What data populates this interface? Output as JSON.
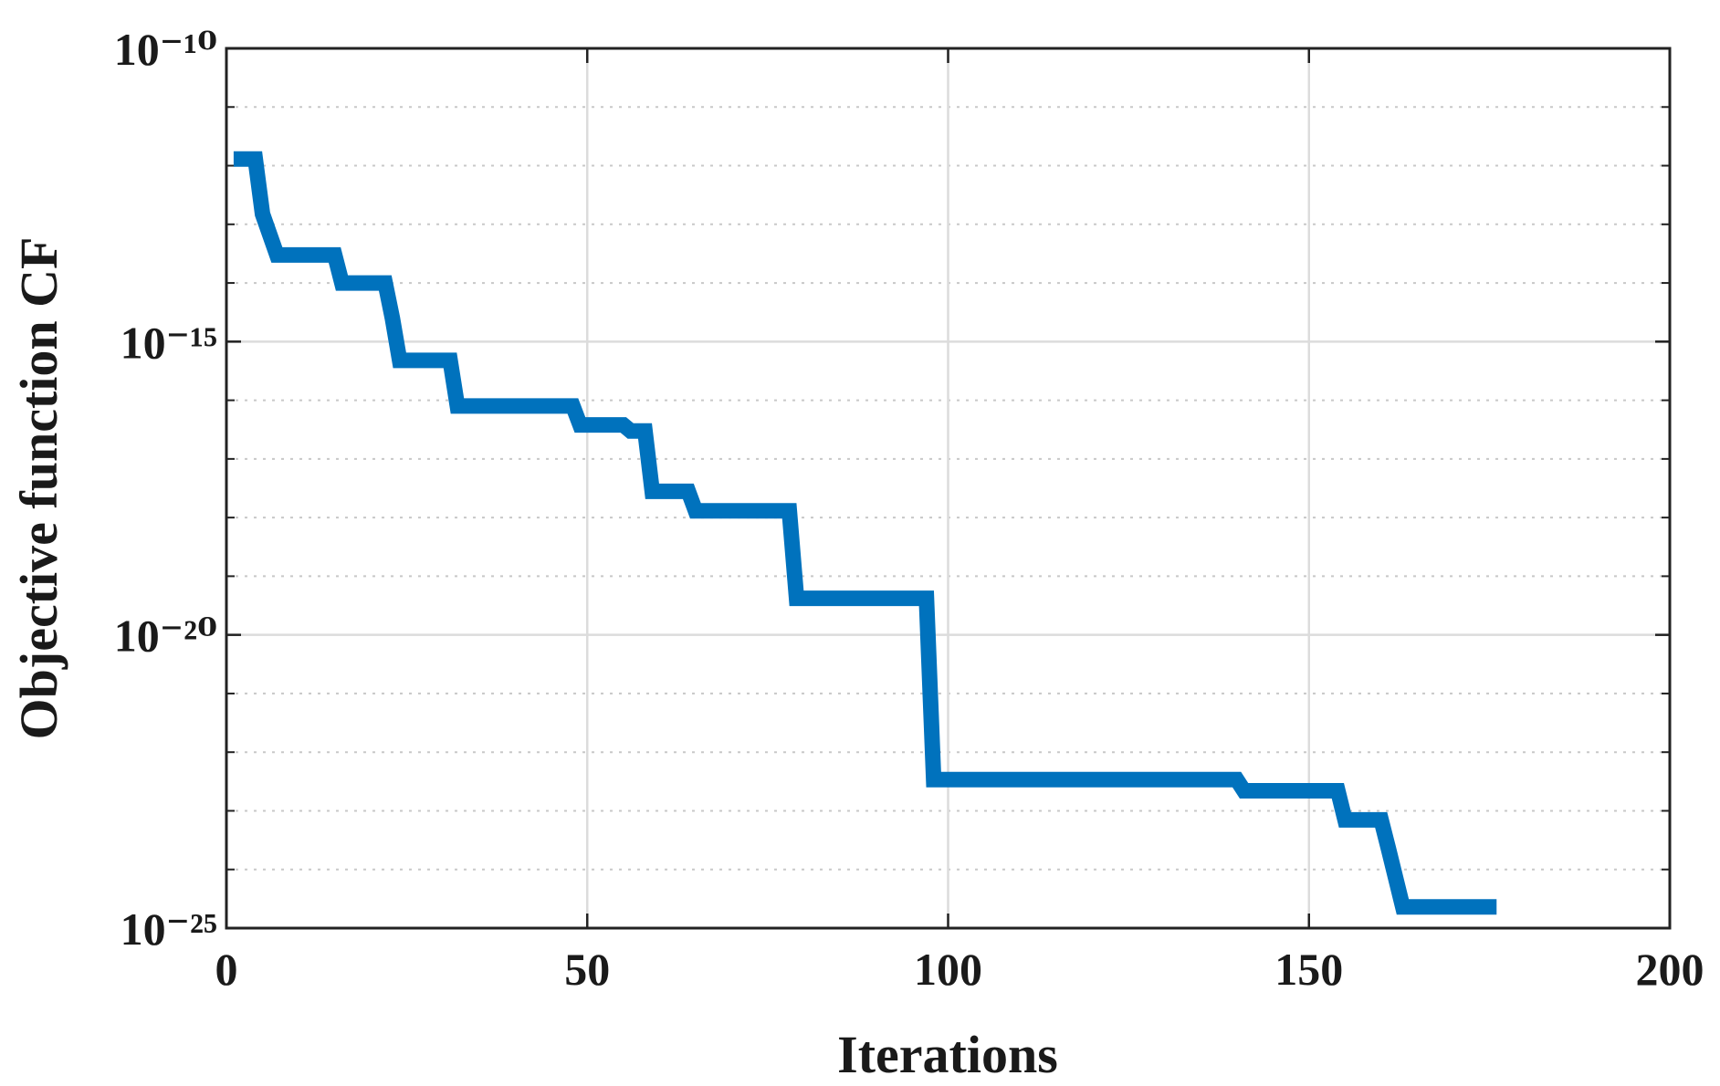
{
  "chart_data": {
    "type": "line",
    "xlabel": "Iterations",
    "ylabel": "Objective function CF",
    "x": [
      1,
      4,
      5,
      7,
      15,
      16,
      22,
      23,
      24,
      31,
      32,
      48,
      49,
      55,
      56,
      58,
      59,
      64,
      65,
      78,
      79,
      97,
      98,
      140,
      141,
      154,
      155,
      160,
      161,
      163,
      176
    ],
    "series": [
      {
        "color": "#0072bd",
        "values": [
          1.3e-12,
          1.3e-12,
          1.5e-13,
          3e-14,
          3e-14,
          1e-14,
          1e-14,
          2.5e-15,
          4.8e-16,
          4.8e-16,
          8e-17,
          8e-17,
          3.8e-17,
          3.8e-17,
          3e-17,
          3e-17,
          2.8e-18,
          2.8e-18,
          1.3e-18,
          1.3e-18,
          4.2e-20,
          4.2e-20,
          3.4e-23,
          3.4e-23,
          2.2e-23,
          2.2e-23,
          7e-24,
          7e-24,
          2.3e-24,
          2.3e-25,
          2.3e-25
        ]
      }
    ],
    "xlim": [
      0,
      200
    ],
    "xticks": [
      0,
      50,
      100,
      150,
      200
    ],
    "ylim": [
      1e-25,
      1e-10
    ],
    "yscale": "log",
    "yticks": [
      {
        "value": 1e-25,
        "label": "10⁻²⁵"
      },
      {
        "value": 1e-20,
        "label": "10⁻²⁰"
      },
      {
        "value": 1e-15,
        "label": "10⁻¹⁵"
      },
      {
        "value": 1e-10,
        "label": "10⁻¹⁰"
      }
    ],
    "yminorticks": [
      1e-24,
      1e-23,
      1e-22,
      1e-21,
      1e-19,
      1e-18,
      1e-17,
      1e-16,
      1e-14,
      1e-13,
      1e-12,
      1e-11
    ],
    "grid": true,
    "minor_grid": true
  }
}
